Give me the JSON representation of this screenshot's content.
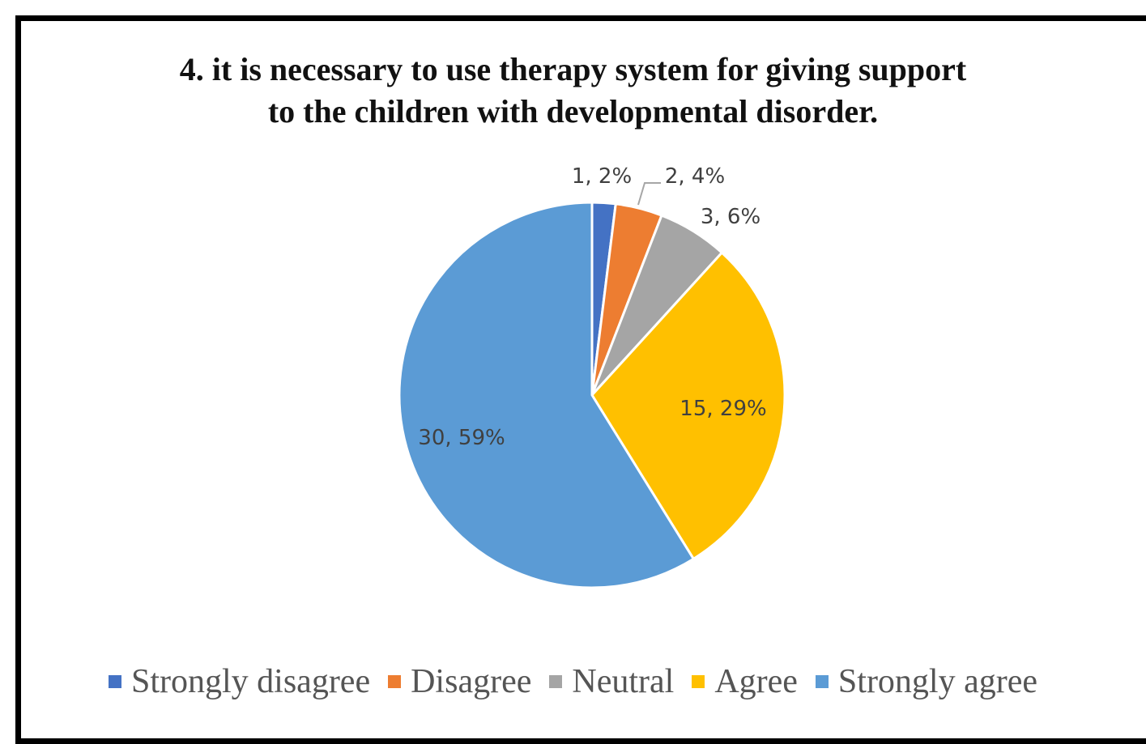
{
  "chart_data": {
    "type": "pie",
    "title": "4. it is necessary to use therapy system for giving support to the children with developmental disorder.",
    "title_lines": [
      "4. it is necessary to use therapy system for giving support",
      "to the children with developmental disorder."
    ],
    "categories": [
      "Strongly disagree",
      "Disagree",
      "Neutral",
      "Agree",
      "Strongly agree"
    ],
    "values": [
      1,
      2,
      3,
      15,
      30
    ],
    "percent_labels": [
      "2%",
      "4%",
      "6%",
      "29%",
      "59%"
    ],
    "data_labels": [
      "1, 2%",
      "2, 4%",
      "3, 6%",
      "15, 29%",
      "30, 59%"
    ],
    "colors": [
      "#4472C4",
      "#ED7D31",
      "#A5A5A5",
      "#FFC000",
      "#5B9BD5"
    ],
    "legend_position": "bottom",
    "start_angle_deg": 0,
    "direction": "clockwise"
  }
}
